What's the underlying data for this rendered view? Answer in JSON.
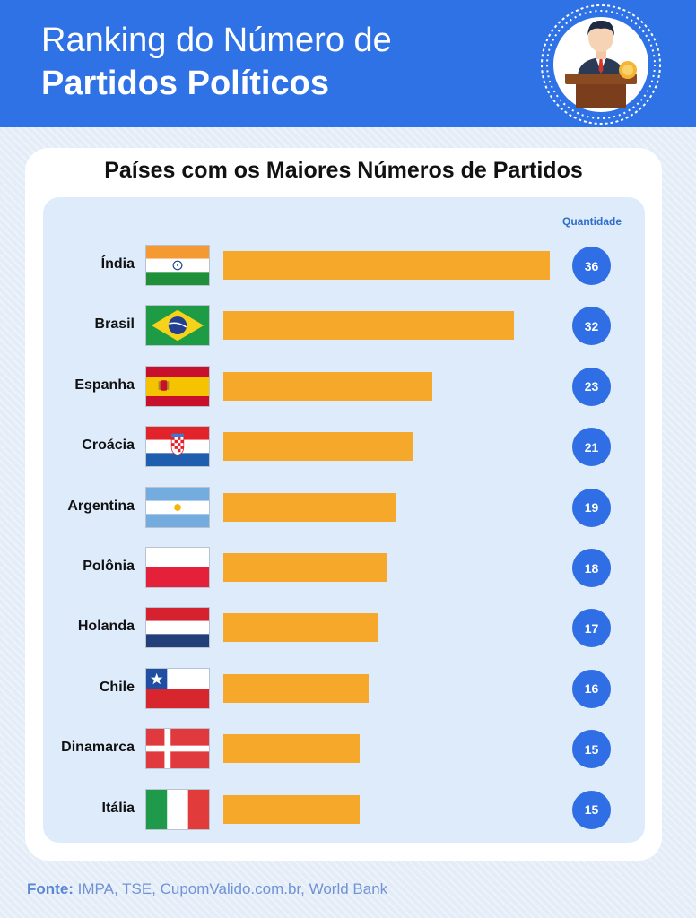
{
  "header": {
    "title_line1": "Ranking do Número de",
    "title_line2": "Partidos Políticos",
    "emblem_icon": "politician-at-podium-icon"
  },
  "colors": {
    "header_bg": "#2f72e6",
    "bar": "#f5a82a",
    "badge": "#2f6ee5",
    "panel": "#deebfa"
  },
  "chart_data": {
    "type": "bar",
    "orientation": "horizontal",
    "title": "Países com os Maiores Números de Partidos",
    "value_column_label": "Quantidade",
    "categories": [
      "Índia",
      "Brasil",
      "Espanha",
      "Croácia",
      "Argentina",
      "Polônia",
      "Holanda",
      "Chile",
      "Dinamarca",
      "Itália"
    ],
    "values": [
      36,
      32,
      23,
      21,
      19,
      18,
      17,
      16,
      15,
      15
    ],
    "flags": [
      "india-flag-icon",
      "brazil-flag-icon",
      "spain-flag-icon",
      "croatia-flag-icon",
      "argentina-flag-icon",
      "poland-flag-icon",
      "netherlands-flag-icon",
      "chile-flag-icon",
      "denmark-flag-icon",
      "italy-flag-icon"
    ],
    "data_labels": true
  },
  "footer": {
    "source_label": "Fonte:",
    "source_text": " IMPA, TSE, CupomValido.com.br, World Bank"
  }
}
